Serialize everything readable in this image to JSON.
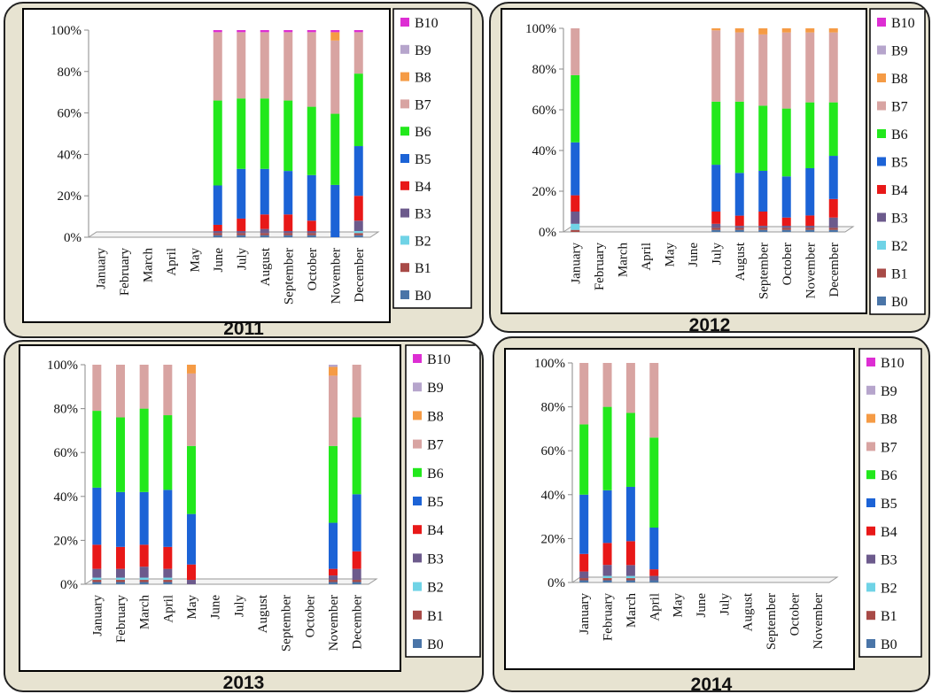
{
  "legend_labels": [
    "B10",
    "B9",
    "B8",
    "B7",
    "B6",
    "B5",
    "B4",
    "B3",
    "B2",
    "B1",
    "B0"
  ],
  "colors": {
    "B0": "#4a75a8",
    "B1": "#a84a47",
    "B2": "#6fd3e6",
    "B3": "#6c5a8c",
    "B4": "#e81818",
    "B5": "#1c63d6",
    "B6": "#22e81c",
    "B7": "#d8a4a2",
    "B8": "#f59b45",
    "B9": "#b6a5cc",
    "B10": "#dd2ed3"
  },
  "chart_data": [
    {
      "type": "bar",
      "stacked": "percent",
      "title": "2011",
      "categories": [
        "January",
        "February",
        "March",
        "April",
        "May",
        "June",
        "July",
        "August",
        "September",
        "October",
        "November",
        "December"
      ],
      "yticks": [
        "0%",
        "20%",
        "40%",
        "60%",
        "80%",
        "100%"
      ],
      "ylim": [
        0,
        100
      ],
      "legend_position": "right",
      "series": [
        {
          "name": "B0",
          "values": [
            0,
            0,
            0,
            0,
            0,
            1,
            1,
            1,
            1,
            1,
            0,
            1
          ]
        },
        {
          "name": "B1",
          "values": [
            0,
            0,
            0,
            0,
            0,
            1,
            1,
            1,
            1,
            1,
            0,
            1
          ]
        },
        {
          "name": "B2",
          "values": [
            0,
            0,
            0,
            0,
            0,
            0,
            0,
            0,
            0,
            0,
            0,
            1
          ]
        },
        {
          "name": "B3",
          "values": [
            0,
            0,
            0,
            0,
            0,
            1,
            1,
            2,
            1,
            1,
            0,
            5
          ]
        },
        {
          "name": "B4",
          "values": [
            0,
            0,
            0,
            0,
            0,
            3,
            6,
            7,
            8,
            5,
            0,
            12
          ]
        },
        {
          "name": "B5",
          "values": [
            0,
            0,
            0,
            0,
            0,
            19,
            24,
            22,
            21,
            22,
            25,
            24
          ]
        },
        {
          "name": "B6",
          "values": [
            0,
            0,
            0,
            0,
            0,
            41,
            34,
            34,
            34,
            33,
            34,
            35
          ]
        },
        {
          "name": "B7",
          "values": [
            0,
            0,
            0,
            0,
            0,
            33,
            32,
            32,
            33,
            36,
            35,
            20
          ]
        },
        {
          "name": "B8",
          "values": [
            0,
            0,
            0,
            0,
            0,
            0,
            0,
            0,
            0,
            0,
            4,
            0
          ]
        },
        {
          "name": "B9",
          "values": [
            0,
            0,
            0,
            0,
            0,
            0,
            0,
            0,
            0,
            0,
            0,
            0
          ]
        },
        {
          "name": "B10",
          "values": [
            0,
            0,
            0,
            0,
            0,
            1,
            1,
            1,
            1,
            1,
            1,
            1
          ]
        }
      ]
    },
    {
      "type": "bar",
      "stacked": "percent",
      "title": "2012",
      "categories": [
        "January",
        "February",
        "March",
        "April",
        "May",
        "June",
        "July",
        "August",
        "September",
        "October",
        "November",
        "December"
      ],
      "yticks": [
        "0%",
        "20%",
        "40%",
        "60%",
        "80%",
        "100%"
      ],
      "ylim": [
        0,
        100
      ],
      "legend_position": "right",
      "series": [
        {
          "name": "B0",
          "values": [
            0,
            0,
            0,
            0,
            0,
            0,
            1,
            1,
            1,
            1,
            1,
            1
          ]
        },
        {
          "name": "B1",
          "values": [
            1,
            0,
            0,
            0,
            0,
            0,
            1,
            1,
            1,
            1,
            1,
            1
          ]
        },
        {
          "name": "B2",
          "values": [
            3,
            0,
            0,
            0,
            0,
            0,
            0,
            0,
            0,
            0,
            0,
            0
          ]
        },
        {
          "name": "B3",
          "values": [
            6,
            0,
            0,
            0,
            0,
            0,
            2,
            1,
            1,
            1,
            1,
            5
          ]
        },
        {
          "name": "B4",
          "values": [
            8,
            0,
            0,
            0,
            0,
            0,
            6,
            5,
            7,
            4,
            5,
            9
          ]
        },
        {
          "name": "B5",
          "values": [
            26,
            0,
            0,
            0,
            0,
            0,
            23,
            21,
            20,
            20,
            23,
            21
          ]
        },
        {
          "name": "B6",
          "values": [
            33,
            0,
            0,
            0,
            0,
            0,
            31,
            35,
            32,
            33,
            32,
            26
          ]
        },
        {
          "name": "B7",
          "values": [
            23,
            0,
            0,
            0,
            0,
            0,
            35,
            34,
            35,
            37,
            34,
            34
          ]
        },
        {
          "name": "B8",
          "values": [
            0,
            0,
            0,
            0,
            0,
            0,
            1,
            2,
            3,
            2,
            2,
            2
          ]
        },
        {
          "name": "B9",
          "values": [
            0,
            0,
            0,
            0,
            0,
            0,
            0,
            0,
            0,
            0,
            0,
            0
          ]
        },
        {
          "name": "B10",
          "values": [
            0,
            0,
            0,
            0,
            0,
            0,
            0,
            0,
            0,
            0,
            0,
            0
          ]
        }
      ]
    },
    {
      "type": "bar",
      "stacked": "percent",
      "title": "2013",
      "categories": [
        "January",
        "February",
        "March",
        "April",
        "May",
        "June",
        "July",
        "August",
        "September",
        "October",
        "November",
        "December"
      ],
      "yticks": [
        "0%",
        "20%",
        "40%",
        "60%",
        "80%",
        "100%"
      ],
      "ylim": [
        0,
        100
      ],
      "legend_position": "right",
      "series": [
        {
          "name": "B0",
          "values": [
            1,
            1,
            1,
            1,
            0,
            0,
            0,
            0,
            0,
            0,
            1,
            1
          ]
        },
        {
          "name": "B1",
          "values": [
            1,
            1,
            1,
            1,
            0,
            0,
            0,
            0,
            0,
            0,
            1,
            1
          ]
        },
        {
          "name": "B2",
          "values": [
            1,
            1,
            1,
            1,
            0,
            0,
            0,
            0,
            0,
            0,
            0,
            0
          ]
        },
        {
          "name": "B3",
          "values": [
            4,
            4,
            5,
            4,
            2,
            0,
            0,
            0,
            0,
            0,
            2,
            5
          ]
        },
        {
          "name": "B4",
          "values": [
            11,
            10,
            10,
            10,
            7,
            0,
            0,
            0,
            0,
            0,
            3,
            8
          ]
        },
        {
          "name": "B5",
          "values": [
            26,
            25,
            24,
            26,
            23,
            0,
            0,
            0,
            0,
            0,
            21,
            26
          ]
        },
        {
          "name": "B6",
          "values": [
            35,
            34,
            38,
            34,
            31,
            0,
            0,
            0,
            0,
            0,
            35,
            35
          ]
        },
        {
          "name": "B7",
          "values": [
            21,
            24,
            20,
            23,
            33,
            0,
            0,
            0,
            0,
            0,
            32,
            24
          ]
        },
        {
          "name": "B8",
          "values": [
            0,
            0,
            0,
            0,
            4,
            0,
            0,
            0,
            0,
            0,
            4,
            0
          ]
        },
        {
          "name": "B9",
          "values": [
            0,
            0,
            0,
            0,
            0,
            0,
            0,
            0,
            0,
            0,
            1,
            0
          ]
        },
        {
          "name": "B10",
          "values": [
            0,
            0,
            0,
            0,
            0,
            0,
            0,
            0,
            0,
            0,
            0,
            0
          ]
        }
      ]
    },
    {
      "type": "bar",
      "stacked": "percent",
      "title": "2014",
      "categories": [
        "January",
        "February",
        "March",
        "April",
        "May",
        "June",
        "July",
        "August",
        "September",
        "October",
        "November"
      ],
      "yticks": [
        "0%",
        "20%",
        "40%",
        "60%",
        "80%",
        "100%"
      ],
      "ylim": [
        0,
        100
      ],
      "legend_position": "right",
      "series": [
        {
          "name": "B0",
          "values": [
            1,
            1,
            1,
            1,
            0,
            0,
            0,
            0,
            0,
            0,
            0
          ]
        },
        {
          "name": "B1",
          "values": [
            1,
            1,
            1,
            0,
            0,
            0,
            0,
            0,
            0,
            0,
            0
          ]
        },
        {
          "name": "B2",
          "values": [
            0,
            1,
            1,
            0,
            0,
            0,
            0,
            0,
            0,
            0,
            0
          ]
        },
        {
          "name": "B3",
          "values": [
            3,
            5,
            5,
            2,
            0,
            0,
            0,
            0,
            0,
            0,
            0
          ]
        },
        {
          "name": "B4",
          "values": [
            8,
            10,
            11,
            3,
            0,
            0,
            0,
            0,
            0,
            0,
            0
          ]
        },
        {
          "name": "B5",
          "values": [
            27,
            24,
            25,
            19,
            0,
            0,
            0,
            0,
            0,
            0,
            0
          ]
        },
        {
          "name": "B6",
          "values": [
            32,
            38,
            34,
            41,
            0,
            0,
            0,
            0,
            0,
            0,
            0
          ]
        },
        {
          "name": "B7",
          "values": [
            28,
            20,
            23,
            34,
            0,
            0,
            0,
            0,
            0,
            0,
            0
          ]
        },
        {
          "name": "B8",
          "values": [
            0,
            0,
            0,
            0,
            0,
            0,
            0,
            0,
            0,
            0,
            0
          ]
        },
        {
          "name": "B9",
          "values": [
            0,
            0,
            0,
            0,
            0,
            0,
            0,
            0,
            0,
            0,
            0
          ]
        },
        {
          "name": "B10",
          "values": [
            0,
            0,
            0,
            0,
            0,
            0,
            0,
            0,
            0,
            0,
            0
          ]
        }
      ]
    }
  ]
}
